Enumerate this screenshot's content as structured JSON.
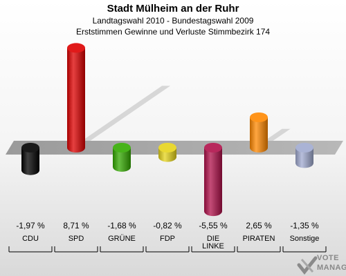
{
  "header": {
    "title": "Stadt Mülheim an der Ruhr",
    "subtitle": "Landtagswahl 2010 - Bundestagswahl 2009",
    "subtitle2": "Erststimmen Gewinne und Verluste Stimmbezirk 174"
  },
  "chart_data": {
    "type": "bar",
    "title": "Stadt Mülheim an der Ruhr",
    "subtitle": "Landtagswahl 2010 - Bundestagswahl 2009 / Erststimmen Gewinne und Verluste Stimmbezirk 174",
    "categories": [
      "CDU",
      "SPD",
      "GRÜNE",
      "FDP",
      "DIE LINKE",
      "PIRATEN",
      "Sonstige"
    ],
    "category_lines": [
      [
        "CDU"
      ],
      [
        "SPD"
      ],
      [
        "GRÜNE"
      ],
      [
        "FDP"
      ],
      [
        "DIE",
        "LINKE"
      ],
      [
        "PIRATEN"
      ],
      [
        "Sonstige"
      ]
    ],
    "values": [
      -1.97,
      8.71,
      -1.68,
      -0.82,
      -5.55,
      2.65,
      -1.35
    ],
    "value_labels": [
      "-1,97 %",
      "8,71 %",
      "-1,68 %",
      "-0,82 %",
      "-5,55 %",
      "2,65 %",
      "-1,35 %"
    ],
    "colors": [
      "#000000",
      "#dd0000",
      "#33aa00",
      "#e6d41a",
      "#b0104a",
      "#ff8800",
      "#a0aad0"
    ],
    "unit": "%",
    "grid": false,
    "legend": "none"
  },
  "logo": {
    "line1": "VOTE",
    "line2": "MANAGER"
  }
}
